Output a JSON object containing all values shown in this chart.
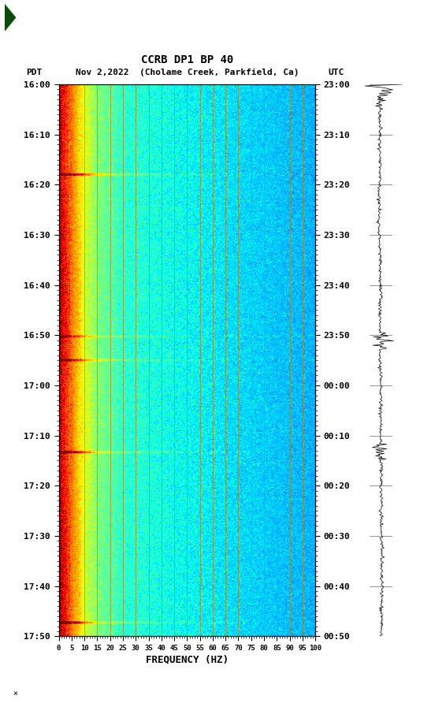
{
  "title_line1": "CCRB DP1 BP 40",
  "title_line2": "PDT  Nov 2,2022  (Cholame Creek, Parkfield, Ca)        UTC",
  "xlabel": "FREQUENCY (HZ)",
  "freq_ticks": [
    0,
    5,
    10,
    15,
    20,
    25,
    30,
    35,
    40,
    45,
    50,
    55,
    60,
    65,
    70,
    75,
    80,
    85,
    90,
    95,
    100
  ],
  "left_time_labels": [
    "16:00",
    "16:10",
    "16:20",
    "16:30",
    "16:40",
    "16:50",
    "17:00",
    "17:10",
    "17:20",
    "17:30",
    "17:40",
    "17:50"
  ],
  "right_time_labels": [
    "23:00",
    "23:10",
    "23:20",
    "23:30",
    "23:40",
    "23:50",
    "00:00",
    "00:10",
    "00:20",
    "00:30",
    "00:40",
    "00:50"
  ],
  "n_time_steps": 720,
  "n_freq_bins": 300,
  "bg_color": "#ffffff",
  "grid_color": "#b8860b",
  "spectrogram_cmap": "jet",
  "fig_width": 5.52,
  "fig_height": 8.92,
  "vmin": -4.0,
  "vmax": 3.5
}
